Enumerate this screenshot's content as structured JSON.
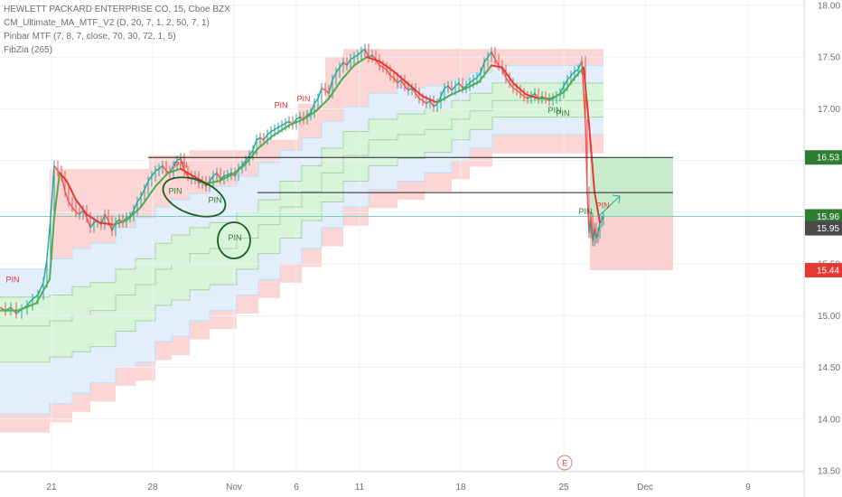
{
  "legend": {
    "title": "HEWLETT PACKARD ENTERPRISE CO, 15, Cboe BZX",
    "ind1": "CM_Ultimate_MA_MTF_V2 (D, 20, 7, 1, 2, 50, 7, 1)",
    "ind2": "Pinbar MTF (7, 8, 7, close, 70, 30, 72, 1, 5)",
    "ind3": "FibZia (265)"
  },
  "colors": {
    "up": "#26a69a",
    "down": "#ef5350",
    "ma_green": "#4caf50",
    "ma_red": "#e53935",
    "zone_red": "#fcd5d5",
    "zone_blue": "#e3eefb",
    "zone_green": "#d9f5d9",
    "target_box": "#c8eccb",
    "stop_box": "#fbd0d0",
    "badge_green": "#2e7d32",
    "badge_gray": "#4a4a4a",
    "badge_red": "#e53935"
  },
  "chart_data": {
    "type": "line",
    "y_axis": {
      "ticks": [
        "18.00",
        "17.50",
        "17.00",
        "16.50",
        "16.00",
        "15.50",
        "15.00",
        "14.50",
        "14.00",
        "13.50"
      ],
      "ylim": [
        13.5,
        18.0
      ]
    },
    "x_axis": {
      "ticks": [
        "21",
        "28",
        "Nov",
        "6",
        "11",
        "18",
        "25",
        "Dec",
        "9"
      ]
    },
    "price_badges": [
      {
        "value": "16.53",
        "kind": "green"
      },
      {
        "value": "15.96",
        "kind": "green"
      },
      {
        "value": "15.95",
        "kind": "gray"
      },
      {
        "value": "15.44",
        "kind": "red"
      }
    ],
    "price_path": [
      [
        0,
        15.08
      ],
      [
        6,
        15.05
      ],
      [
        12,
        15.08
      ],
      [
        18,
        15.02
      ],
      [
        24,
        15.06
      ],
      [
        30,
        15.1
      ],
      [
        36,
        15.16
      ],
      [
        42,
        15.2
      ],
      [
        48,
        15.32
      ],
      [
        52,
        15.55
      ],
      [
        56,
        15.95
      ],
      [
        60,
        16.45
      ],
      [
        64,
        16.4
      ],
      [
        68,
        16.35
      ],
      [
        72,
        16.2
      ],
      [
        76,
        16.1
      ],
      [
        80,
        16.05
      ],
      [
        84,
        16.0
      ],
      [
        88,
        15.98
      ],
      [
        92,
        16.02
      ],
      [
        96,
        15.95
      ],
      [
        100,
        15.85
      ],
      [
        104,
        15.9
      ],
      [
        108,
        15.92
      ],
      [
        112,
        15.88
      ],
      [
        116,
        15.98
      ],
      [
        120,
        15.92
      ],
      [
        124,
        15.82
      ],
      [
        128,
        15.9
      ],
      [
        132,
        15.93
      ],
      [
        136,
        15.9
      ],
      [
        140,
        15.95
      ],
      [
        144,
        15.96
      ],
      [
        148,
        16.02
      ],
      [
        152,
        16.1
      ],
      [
        156,
        16.15
      ],
      [
        160,
        16.22
      ],
      [
        164,
        16.3
      ],
      [
        168,
        16.35
      ],
      [
        172,
        16.4
      ],
      [
        176,
        16.42
      ],
      [
        180,
        16.45
      ],
      [
        184,
        16.4
      ],
      [
        188,
        16.38
      ],
      [
        192,
        16.45
      ],
      [
        196,
        16.5
      ],
      [
        200,
        16.52
      ],
      [
        204,
        16.4
      ],
      [
        208,
        16.35
      ],
      [
        212,
        16.32
      ],
      [
        216,
        16.35
      ],
      [
        220,
        16.28
      ],
      [
        224,
        16.3
      ],
      [
        228,
        16.25
      ],
      [
        232,
        16.3
      ],
      [
        236,
        16.35
      ],
      [
        240,
        16.38
      ],
      [
        244,
        16.32
      ],
      [
        248,
        16.35
      ],
      [
        252,
        16.36
      ],
      [
        256,
        16.38
      ],
      [
        260,
        16.35
      ],
      [
        264,
        16.42
      ],
      [
        268,
        16.45
      ],
      [
        272,
        16.5
      ],
      [
        276,
        16.55
      ],
      [
        280,
        16.6
      ],
      [
        284,
        16.7
      ],
      [
        288,
        16.72
      ],
      [
        292,
        16.7
      ],
      [
        296,
        16.75
      ],
      [
        300,
        16.78
      ],
      [
        304,
        16.8
      ],
      [
        308,
        16.82
      ],
      [
        312,
        16.84
      ],
      [
        316,
        16.86
      ],
      [
        320,
        16.88
      ],
      [
        324,
        16.85
      ],
      [
        328,
        16.9
      ],
      [
        332,
        16.92
      ],
      [
        336,
        16.9
      ],
      [
        340,
        16.94
      ],
      [
        344,
        16.96
      ],
      [
        348,
        17.05
      ],
      [
        352,
        17.1
      ],
      [
        356,
        17.2
      ],
      [
        360,
        17.18
      ],
      [
        364,
        17.15
      ],
      [
        368,
        17.28
      ],
      [
        372,
        17.35
      ],
      [
        376,
        17.4
      ],
      [
        380,
        17.45
      ],
      [
        384,
        17.42
      ],
      [
        388,
        17.48
      ],
      [
        392,
        17.5
      ],
      [
        396,
        17.52
      ],
      [
        400,
        17.55
      ],
      [
        404,
        17.58
      ],
      [
        408,
        17.5
      ],
      [
        412,
        17.52
      ],
      [
        416,
        17.48
      ],
      [
        420,
        17.42
      ],
      [
        424,
        17.4
      ],
      [
        428,
        17.38
      ],
      [
        432,
        17.32
      ],
      [
        436,
        17.3
      ],
      [
        440,
        17.25
      ],
      [
        444,
        17.28
      ],
      [
        448,
        17.22
      ],
      [
        452,
        17.18
      ],
      [
        456,
        17.2
      ],
      [
        460,
        17.15
      ],
      [
        464,
        17.1
      ],
      [
        468,
        17.08
      ],
      [
        472,
        17.05
      ],
      [
        476,
        17.08
      ],
      [
        480,
        17.02
      ],
      [
        484,
        17.05
      ],
      [
        488,
        17.12
      ],
      [
        492,
        17.2
      ],
      [
        496,
        17.22
      ],
      [
        500,
        17.18
      ],
      [
        504,
        17.22
      ],
      [
        508,
        17.25
      ],
      [
        512,
        17.2
      ],
      [
        516,
        17.22
      ],
      [
        520,
        17.25
      ],
      [
        524,
        17.28
      ],
      [
        528,
        17.3
      ],
      [
        532,
        17.35
      ],
      [
        536,
        17.45
      ],
      [
        540,
        17.5
      ],
      [
        544,
        17.55
      ],
      [
        548,
        17.48
      ],
      [
        552,
        17.42
      ],
      [
        556,
        17.38
      ],
      [
        560,
        17.3
      ],
      [
        564,
        17.25
      ],
      [
        568,
        17.2
      ],
      [
        572,
        17.18
      ],
      [
        576,
        17.15
      ],
      [
        580,
        17.12
      ],
      [
        584,
        17.1
      ],
      [
        588,
        17.12
      ],
      [
        592,
        17.15
      ],
      [
        596,
        17.1
      ],
      [
        600,
        17.12
      ],
      [
        604,
        17.1
      ],
      [
        608,
        17.08
      ],
      [
        612,
        17.1
      ],
      [
        616,
        17.12
      ],
      [
        620,
        17.15
      ],
      [
        624,
        17.22
      ],
      [
        628,
        17.28
      ],
      [
        632,
        17.32
      ],
      [
        636,
        17.36
      ],
      [
        640,
        17.38
      ],
      [
        644,
        17.46
      ],
      [
        648,
        16.85
      ],
      [
        650,
        16.2
      ],
      [
        652,
        15.8
      ],
      [
        654,
        15.95
      ],
      [
        656,
        15.72
      ],
      [
        658,
        15.85
      ],
      [
        660,
        15.75
      ],
      [
        662,
        15.8
      ],
      [
        664,
        15.9
      ],
      [
        666,
        15.92
      ],
      [
        668,
        15.96
      ]
    ],
    "ma_path": [
      [
        0,
        15.05
      ],
      [
        20,
        15.05
      ],
      [
        40,
        15.12
      ],
      [
        55,
        15.35
      ],
      [
        60,
        15.95
      ],
      [
        66,
        16.38
      ],
      [
        74,
        16.3
      ],
      [
        84,
        16.12
      ],
      [
        96,
        15.98
      ],
      [
        110,
        15.9
      ],
      [
        126,
        15.88
      ],
      [
        140,
        15.92
      ],
      [
        156,
        16.05
      ],
      [
        172,
        16.25
      ],
      [
        186,
        16.38
      ],
      [
        200,
        16.42
      ],
      [
        214,
        16.35
      ],
      [
        228,
        16.28
      ],
      [
        242,
        16.3
      ],
      [
        256,
        16.36
      ],
      [
        270,
        16.45
      ],
      [
        286,
        16.62
      ],
      [
        302,
        16.74
      ],
      [
        320,
        16.84
      ],
      [
        336,
        16.9
      ],
      [
        350,
        16.98
      ],
      [
        364,
        17.1
      ],
      [
        378,
        17.28
      ],
      [
        392,
        17.42
      ],
      [
        406,
        17.5
      ],
      [
        420,
        17.46
      ],
      [
        436,
        17.36
      ],
      [
        452,
        17.24
      ],
      [
        468,
        17.12
      ],
      [
        484,
        17.06
      ],
      [
        500,
        17.14
      ],
      [
        516,
        17.2
      ],
      [
        530,
        17.26
      ],
      [
        544,
        17.42
      ],
      [
        556,
        17.4
      ],
      [
        568,
        17.25
      ],
      [
        582,
        17.14
      ],
      [
        596,
        17.1
      ],
      [
        610,
        17.1
      ],
      [
        624,
        17.16
      ],
      [
        636,
        17.3
      ],
      [
        646,
        17.4
      ],
      [
        652,
        16.85
      ],
      [
        658,
        16.2
      ],
      [
        664,
        15.9
      ]
    ],
    "hlines": [
      {
        "value": 16.53,
        "x0": 164,
        "x1": 745
      },
      {
        "value": 16.19,
        "x0": 285,
        "x1": 745
      }
    ],
    "position_box": {
      "x0": 653,
      "x1": 745,
      "entry": 15.96,
      "target": 16.53,
      "stop": 15.44
    },
    "pins": [
      {
        "x": 14,
        "y": 15.32,
        "color": "red"
      },
      {
        "x": 311,
        "y": 17.01,
        "color": "red"
      },
      {
        "x": 336,
        "y": 17.07,
        "color": "red"
      },
      {
        "x": 200,
        "y": 16.43,
        "color": "red"
      },
      {
        "x": 194,
        "y": 16.18,
        "color": "green"
      },
      {
        "x": 238,
        "y": 16.09,
        "color": "green"
      },
      {
        "x": 260,
        "y": 15.73,
        "color": "green"
      },
      {
        "x": 614,
        "y": 16.96,
        "color": "green"
      },
      {
        "x": 623,
        "y": 16.93,
        "color": "green"
      },
      {
        "x": 648,
        "y": 15.98,
        "color": "green"
      },
      {
        "x": 667,
        "y": 16.04,
        "color": "red"
      }
    ],
    "earnings_marker": "E"
  }
}
